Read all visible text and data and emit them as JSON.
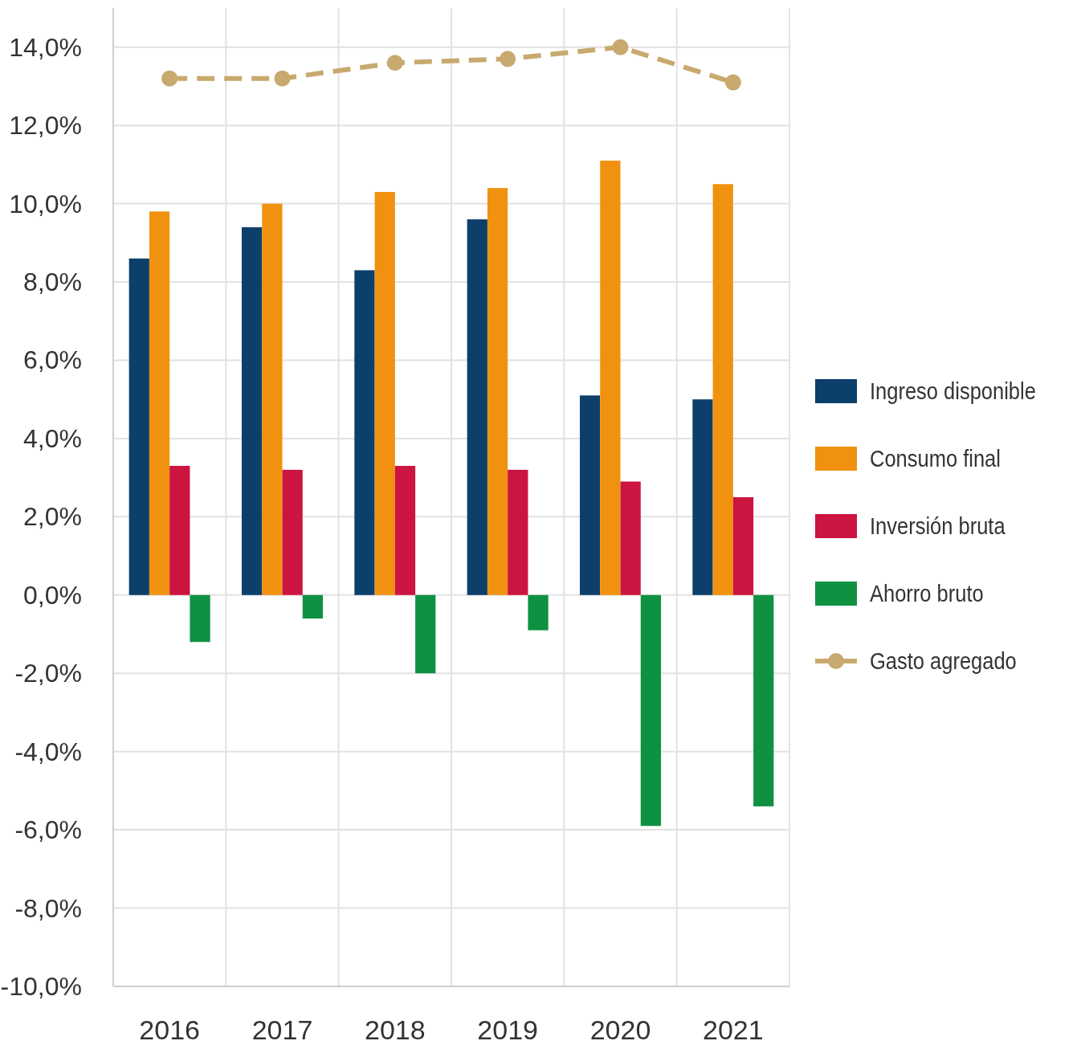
{
  "chart_data": {
    "type": "bar",
    "categories": [
      "2016",
      "2017",
      "2018",
      "2019",
      "2020",
      "2021"
    ],
    "series": [
      {
        "name": "Ingreso disponible",
        "color": "#0d3f6b",
        "values": [
          8.6,
          9.4,
          8.3,
          9.6,
          5.1,
          5.0
        ]
      },
      {
        "name": "Consumo final",
        "color": "#f0920f",
        "values": [
          9.8,
          10.0,
          10.3,
          10.4,
          11.1,
          10.5
        ]
      },
      {
        "name": "Inversión bruta",
        "color": "#cc1440",
        "values": [
          3.3,
          3.2,
          3.3,
          3.2,
          2.9,
          2.5
        ]
      },
      {
        "name": "Ahorro bruto",
        "color": "#0f9142",
        "values": [
          -1.2,
          -0.6,
          -2.0,
          -0.9,
          -5.9,
          -5.4
        ]
      },
      {
        "name": "Gasto agregado",
        "type": "line",
        "color": "#c8a96e",
        "marker": "circle",
        "line_style": "dashed",
        "values": [
          13.2,
          13.2,
          13.6,
          13.7,
          14.0,
          13.1
        ]
      }
    ],
    "ylim": [
      -10,
      15
    ],
    "yticks": [
      {
        "value": -10,
        "label": "-10,0%"
      },
      {
        "value": -8,
        "label": "-8,0%"
      },
      {
        "value": -6,
        "label": "-6,0%"
      },
      {
        "value": -4,
        "label": "-4,0%"
      },
      {
        "value": -2,
        "label": "-2,0%"
      },
      {
        "value": 0,
        "label": "0,0%"
      },
      {
        "value": 2,
        "label": "2,0%"
      },
      {
        "value": 4,
        "label": "4,0%"
      },
      {
        "value": 6,
        "label": "6,0%"
      },
      {
        "value": 8,
        "label": "8,0%"
      },
      {
        "value": 10,
        "label": "10,0%"
      },
      {
        "value": 12,
        "label": "12,0%"
      },
      {
        "value": 14,
        "label": "14,0%"
      }
    ],
    "grid": true,
    "legend": "right"
  }
}
